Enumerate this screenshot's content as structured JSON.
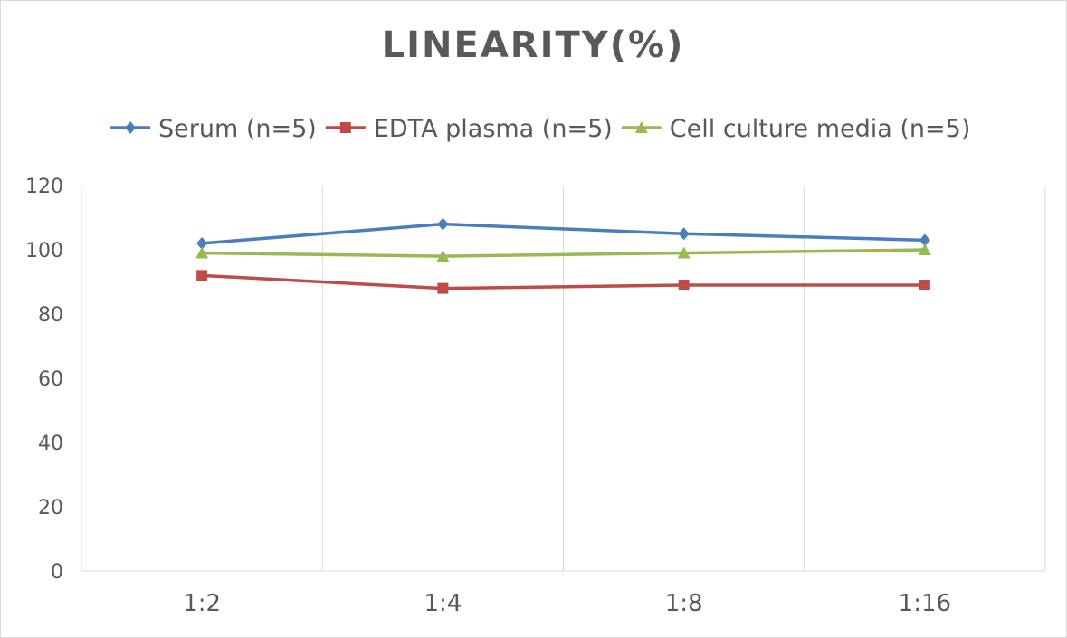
{
  "chart_data": {
    "type": "line",
    "title": "LINEARITY(%)",
    "xlabel": "",
    "ylabel": "",
    "categories": [
      "1:2",
      "1:4",
      "1:8",
      "1:16"
    ],
    "ylim": [
      0,
      120
    ],
    "yticks": [
      0,
      20,
      40,
      60,
      80,
      100,
      120
    ],
    "grid": "vertical",
    "legend": "top",
    "series": [
      {
        "name": "Serum (n=5)",
        "values": [
          102,
          108,
          105,
          103
        ],
        "color": "#4a7ebb",
        "marker": "diamond"
      },
      {
        "name": "EDTA plasma (n=5)",
        "values": [
          92,
          88,
          89,
          89
        ],
        "color": "#be4b48",
        "marker": "square"
      },
      {
        "name": "Cell culture media (n=5)",
        "values": [
          99,
          98,
          99,
          100
        ],
        "color": "#98b954",
        "marker": "triangle"
      }
    ]
  }
}
